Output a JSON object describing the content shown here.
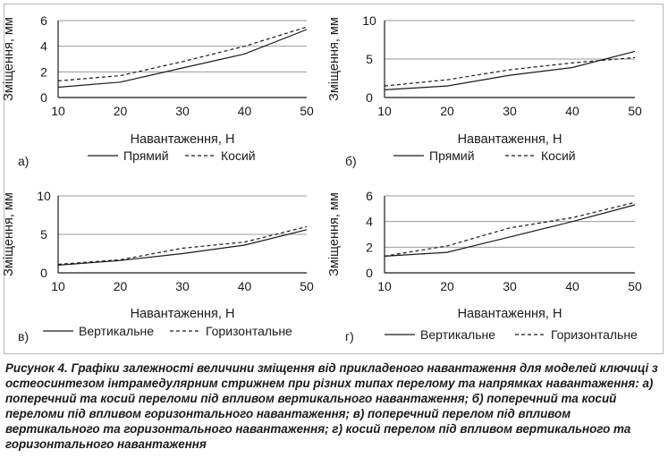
{
  "chart_data": [
    {
      "type": "line",
      "panel_label": "а)",
      "xlabel": "Навантаження, Н",
      "ylabel": "Зміщення, мм",
      "x": [
        10,
        20,
        30,
        40,
        50
      ],
      "xlim": [
        10,
        50
      ],
      "ylim": [
        0,
        6
      ],
      "yticks": [
        0,
        2,
        4,
        6
      ],
      "grid": true,
      "legend_position": "bottom",
      "series": [
        {
          "name": "Прямий",
          "style": "solid",
          "values": [
            0.8,
            1.2,
            2.3,
            3.4,
            5.3
          ]
        },
        {
          "name": "Косий",
          "style": "dashed",
          "values": [
            1.3,
            1.7,
            2.8,
            4.0,
            5.5
          ]
        }
      ]
    },
    {
      "type": "line",
      "panel_label": "б)",
      "xlabel": "Навантаження, Н",
      "ylabel": "Зміщення, мм",
      "x": [
        10,
        20,
        30,
        40,
        50
      ],
      "xlim": [
        10,
        50
      ],
      "ylim": [
        0,
        10
      ],
      "yticks": [
        0,
        5,
        10
      ],
      "grid": true,
      "legend_position": "bottom",
      "series": [
        {
          "name": "Прямий",
          "style": "solid",
          "values": [
            1.0,
            1.5,
            2.9,
            3.9,
            6.0
          ]
        },
        {
          "name": "Косий",
          "style": "dashed",
          "values": [
            1.5,
            2.3,
            3.6,
            4.5,
            5.2
          ]
        }
      ]
    },
    {
      "type": "line",
      "panel_label": "в)",
      "xlabel": "Навантаження, Н",
      "ylabel": "Зміщення, мм",
      "x": [
        10,
        20,
        30,
        40,
        50
      ],
      "xlim": [
        10,
        50
      ],
      "ylim": [
        0,
        10
      ],
      "yticks": [
        0,
        5,
        10
      ],
      "grid": true,
      "legend_position": "bottom",
      "series": [
        {
          "name": "Вертикальне",
          "style": "solid",
          "values": [
            1.0,
            1.6,
            2.5,
            3.6,
            5.6
          ]
        },
        {
          "name": "Горизонтальне",
          "style": "dashed",
          "values": [
            1.1,
            1.7,
            3.2,
            4.0,
            6.0
          ]
        }
      ]
    },
    {
      "type": "line",
      "panel_label": "г)",
      "xlabel": "Навантаження, Н",
      "ylabel": "Зміщення, мм",
      "x": [
        10,
        20,
        30,
        40,
        50
      ],
      "xlim": [
        10,
        50
      ],
      "ylim": [
        0,
        6
      ],
      "yticks": [
        0,
        2,
        4,
        6
      ],
      "grid": true,
      "legend_position": "bottom",
      "series": [
        {
          "name": "Вертикальне",
          "style": "solid",
          "values": [
            1.3,
            1.6,
            2.8,
            4.0,
            5.3
          ]
        },
        {
          "name": "Горизонтальне",
          "style": "dashed",
          "values": [
            1.3,
            2.1,
            3.5,
            4.3,
            5.5
          ]
        }
      ]
    }
  ],
  "caption": "Рисунок 4. Графіки залежності величини зміщення від прикладеного навантаження для моделей ключиці з остеосинтезом інтрамедулярним стрижнем при різних типах перелому та напрямках навантаження: а) поперечний та косий переломи під впливом вертикального навантаження; б) поперечний та косий переломи під впливом горизонтального навантаження; в) поперечний перелом під впливом вертикального та горизонтального навантаження; г) косий перелом під впливом вертикального та горизонтального навантаження",
  "colors": {
    "line": "#1a1a1a",
    "grid": "#9a9a9a",
    "frame": "#b8b8b8"
  }
}
